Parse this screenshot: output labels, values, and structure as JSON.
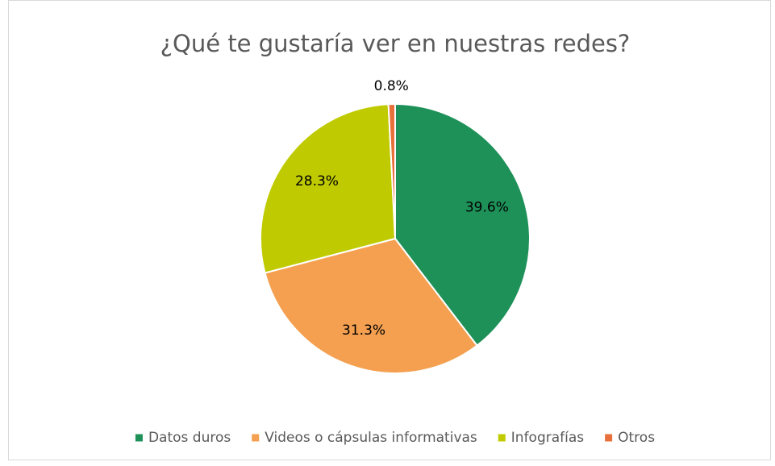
{
  "chart_data": {
    "type": "pie",
    "title": "¿Qué te gustaría ver en nuestras redes?",
    "categories": [
      "Datos duros",
      "Videos o cápsulas informativas",
      "Infografías",
      "Otros"
    ],
    "values": [
      39.6,
      31.3,
      28.3,
      0.8
    ],
    "value_labels": [
      "39.6%",
      "31.3%",
      "28.3%",
      "0.8%"
    ],
    "colors": [
      "#1e9159",
      "#f4a050",
      "#bfcb00",
      "#e8703a"
    ],
    "legend": "bottom"
  }
}
